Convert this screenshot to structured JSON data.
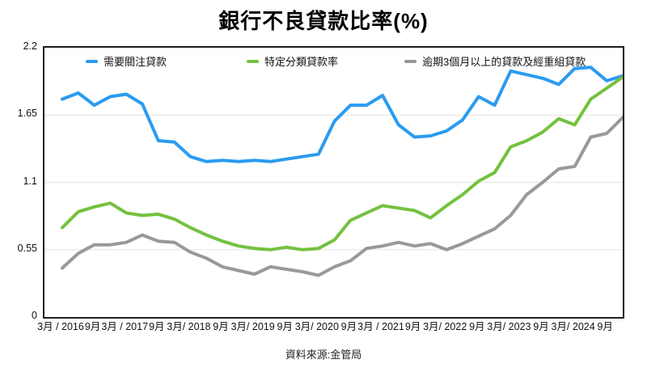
{
  "chart_data": {
    "type": "line",
    "title": "銀行不良貸款比率(%)",
    "source": "資料來源:金管局",
    "grid": "horizontal",
    "legend_position": "top-inside",
    "ylim": [
      0,
      2.2
    ],
    "y_ticks": [
      {
        "value": 0,
        "label": "0"
      },
      {
        "value": 0.55,
        "label": "0.55"
      },
      {
        "value": 1.1,
        "label": "1.1"
      },
      {
        "value": 1.65,
        "label": "1.65"
      },
      {
        "value": 2.2,
        "label": "2.2"
      }
    ],
    "x_labels": [
      "3月 / 2016",
      "9月",
      "3月 / 2017",
      "9月",
      "3月/ 2018",
      "9月",
      "3月/ 2019",
      "9月",
      "3月/ 2020",
      "9月",
      "3月 / 2021",
      "9月",
      "3月/ 2022",
      "9月",
      "3月/ 2023",
      "9月",
      "3月/ 2024",
      "9月"
    ],
    "label_every": 2,
    "n_points": 36,
    "x_frequency": "quarterly",
    "series": [
      {
        "name": "需要關注貸款",
        "color": "#2b9bf0",
        "values": [
          1.78,
          1.83,
          1.73,
          1.8,
          1.82,
          1.74,
          1.44,
          1.43,
          1.31,
          1.27,
          1.28,
          1.27,
          1.28,
          1.27,
          1.29,
          1.31,
          1.33,
          1.6,
          1.73,
          1.73,
          1.81,
          1.57,
          1.47,
          1.48,
          1.52,
          1.61,
          1.8,
          1.73,
          2.01,
          1.98,
          1.95,
          1.9,
          2.03,
          2.04,
          1.93,
          1.97
        ]
      },
      {
        "name": "特定分類貸款率",
        "color": "#74c13f",
        "values": [
          0.73,
          0.86,
          0.9,
          0.93,
          0.85,
          0.83,
          0.84,
          0.8,
          0.73,
          0.67,
          0.62,
          0.58,
          0.56,
          0.55,
          0.57,
          0.55,
          0.56,
          0.63,
          0.79,
          0.85,
          0.91,
          0.89,
          0.87,
          0.81,
          0.91,
          1.0,
          1.11,
          1.18,
          1.39,
          1.44,
          1.51,
          1.62,
          1.57,
          1.78,
          1.87,
          1.96
        ]
      },
      {
        "name": "逾期3個月以上的貸款及經重組貸款",
        "color": "#999999",
        "values": [
          0.4,
          0.52,
          0.59,
          0.59,
          0.61,
          0.67,
          0.62,
          0.61,
          0.53,
          0.48,
          0.41,
          0.38,
          0.35,
          0.41,
          0.39,
          0.37,
          0.34,
          0.41,
          0.46,
          0.56,
          0.58,
          0.61,
          0.58,
          0.6,
          0.55,
          0.6,
          0.66,
          0.72,
          0.83,
          1.0,
          1.1,
          1.21,
          1.23,
          1.47,
          1.5,
          1.63
        ]
      }
    ],
    "gridline_color": "#e3e3e3"
  }
}
